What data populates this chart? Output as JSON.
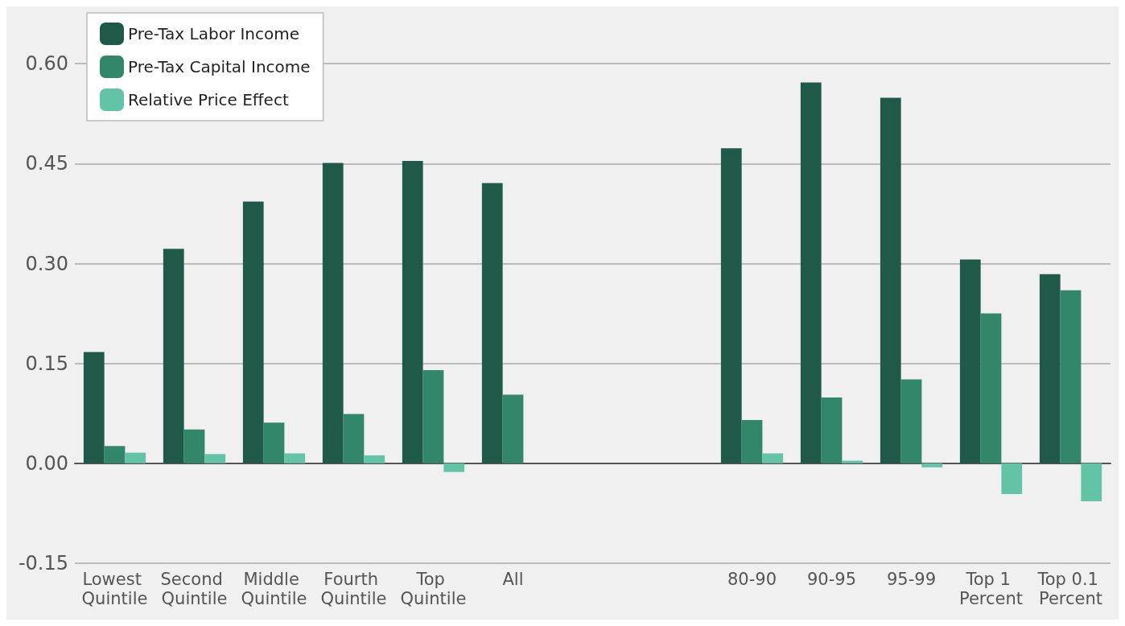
{
  "chart_data": {
    "type": "bar",
    "categories": [
      "Lowest Quintile",
      "Second Quintile",
      "Middle Quintile",
      "Fourth Quintile",
      "Top Quintile",
      "All",
      null,
      null,
      "80-90",
      "90-95",
      "95-99",
      "Top 1 Percent",
      "Top 0.1 Percent"
    ],
    "series": [
      {
        "name": "Pre-Tax Labor Income",
        "color": "#1f5a48",
        "values": [
          0.167,
          0.322,
          0.393,
          0.451,
          0.454,
          0.421,
          null,
          null,
          0.473,
          0.572,
          0.549,
          0.306,
          0.284
        ]
      },
      {
        "name": "Pre-Tax Capital Income",
        "color": "#32876b",
        "values": [
          0.026,
          0.051,
          0.061,
          0.074,
          0.14,
          0.103,
          null,
          null,
          0.065,
          0.099,
          0.126,
          0.225,
          0.26
        ]
      },
      {
        "name": "Relative Price Effect",
        "color": "#63c3a6",
        "values": [
          0.016,
          0.014,
          0.015,
          0.012,
          -0.013,
          null,
          null,
          null,
          0.015,
          0.004,
          -0.006,
          -0.046,
          -0.057
        ]
      }
    ],
    "ylim": [
      -0.15,
      0.68
    ],
    "yticks": [
      {
        "value": -0.15,
        "label": "-0.15"
      },
      {
        "value": 0,
        "label": "0.00"
      },
      {
        "value": 0.15,
        "label": "0.15"
      },
      {
        "value": 0.3,
        "label": "0.30"
      },
      {
        "value": 0.45,
        "label": "0.45"
      },
      {
        "value": 0.6,
        "label": "0.60"
      }
    ],
    "grid": "y",
    "legend": "top left"
  }
}
